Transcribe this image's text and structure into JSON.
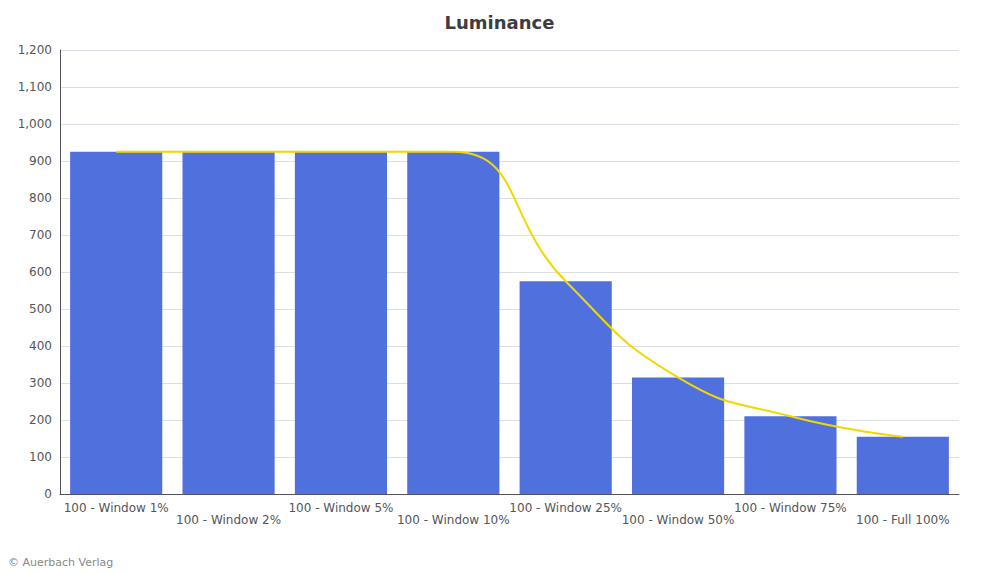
{
  "chart_data": {
    "type": "bar",
    "title": "Luminance",
    "categories": [
      "100 - Window 1%",
      "100 - Window 2%",
      "100 - Window 5%",
      "100 - Window 10%",
      "100 - Window 25%",
      "100 - Window 50%",
      "100 - Window 75%",
      "100 - Full 100%"
    ],
    "series": [
      {
        "type": "bar",
        "values": [
          925,
          925,
          925,
          925,
          575,
          315,
          210,
          155
        ]
      },
      {
        "type": "line",
        "color": "#f0d800",
        "values": [
          925,
          925,
          925,
          925,
          575,
          315,
          210,
          155
        ]
      }
    ],
    "ylim": [
      0,
      1200
    ],
    "yticks": [
      0,
      100,
      200,
      300,
      400,
      500,
      600,
      700,
      800,
      900,
      1000,
      1100,
      1200
    ],
    "grid": true,
    "annotations": [
      "© Auerbach Verlag"
    ]
  }
}
